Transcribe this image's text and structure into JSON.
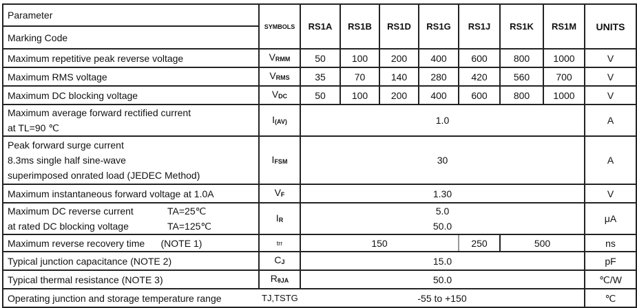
{
  "header": {
    "parameter": "Parameter",
    "marking_code": "Marking Code",
    "symbols": "SYMBOLS",
    "parts": [
      "RS1A",
      "RS1B",
      "RS1D",
      "RS1G",
      "RS1J",
      "RS1K",
      "RS1M"
    ],
    "units": "UNITS"
  },
  "rows": {
    "vrrm": {
      "param": "Maximum repetitive peak reverse voltage",
      "sym": "V",
      "sub": "RMM",
      "values": [
        "50",
        "100",
        "200",
        "400",
        "600",
        "800",
        "1000"
      ],
      "unit": "V"
    },
    "vrms": {
      "param": "Maximum RMS voltage",
      "sym": "V",
      "sub": "RMS",
      "values": [
        "35",
        "70",
        "140",
        "280",
        "420",
        "560",
        "700"
      ],
      "unit": "V"
    },
    "vdc": {
      "param": "Maximum DC blocking voltage",
      "sym": "V",
      "sub": "DC",
      "values": [
        "50",
        "100",
        "200",
        "400",
        "600",
        "800",
        "1000"
      ],
      "unit": "V"
    },
    "iav": {
      "param1": "Maximum average forward rectified current",
      "param2": "at TL=90 ℃",
      "sym": "I",
      "sub": "(AV)",
      "value": "1.0",
      "unit": "A"
    },
    "ifsm": {
      "param1": "Peak forward surge current",
      "param2": "8.3ms single half sine-wave",
      "param3": "superimposed onrated load (JEDEC Method)",
      "sym": "I",
      "sub": "FSM",
      "value": "30",
      "unit": "A"
    },
    "vf": {
      "param": "Maximum instantaneous forward voltage at 1.0A",
      "sym": "V",
      "sub": "F",
      "value": "1.30",
      "unit": "V"
    },
    "ir": {
      "param1": "Maximum DC reverse current",
      "cond1": "TA=25℃",
      "param2": "at rated DC blocking voltage",
      "cond2": "TA=125℃",
      "sym": "I",
      "sub": "R",
      "value1": "5.0",
      "value2": "50.0",
      "unit": "μA"
    },
    "trr": {
      "param": "Maximum reverse recovery time",
      "note": "(NOTE 1)",
      "sym": "trr",
      "values": [
        "150",
        "250",
        "500"
      ],
      "unit": "ns"
    },
    "cj": {
      "param": "Typical junction capacitance (NOTE 2)",
      "sym": "C",
      "sub": "J",
      "value": "15.0",
      "unit": "pF"
    },
    "rth": {
      "param": "Typical thermal resistance (NOTE 3)",
      "sym": "R",
      "sub": "θJA",
      "value": "50.0",
      "unit": "℃/W"
    },
    "tj": {
      "param": "Operating junction and storage temperature range",
      "sym": "TJ,TSTG",
      "value": "-55 to +150",
      "unit": "℃"
    }
  }
}
